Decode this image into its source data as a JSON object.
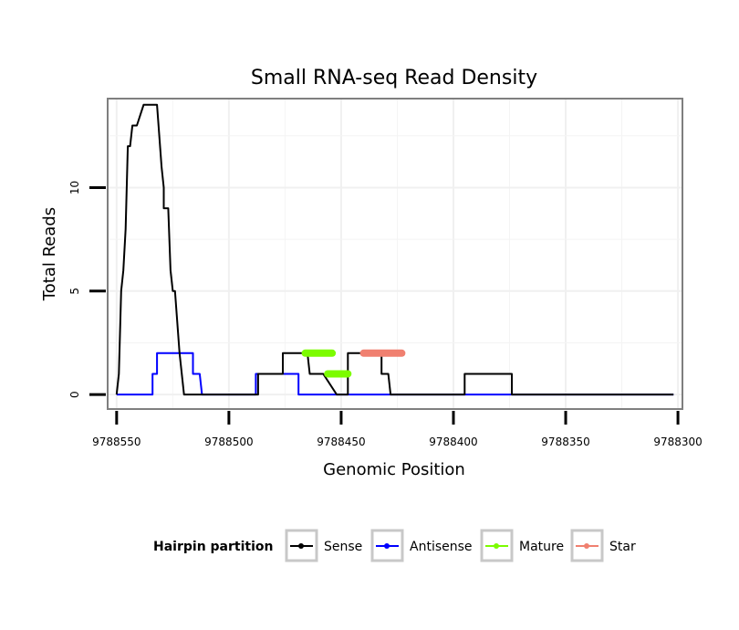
{
  "chart_data": {
    "type": "line",
    "title": "Small RNA-seq Read Density",
    "xlabel": "Genomic Position",
    "ylabel": "Total Reads",
    "xlim": [
      9788554,
      9788298
    ],
    "x_reversed": true,
    "ylim": [
      -0.7,
      14.3
    ],
    "x_ticks": [
      9788550,
      9788500,
      9788450,
      9788400,
      9788350,
      9788300
    ],
    "x_tick_labels": [
      "9788550",
      "9788500",
      "9788450",
      "9788400",
      "9788350",
      "9788300"
    ],
    "y_ticks": [
      0,
      5,
      10
    ],
    "y_tick_labels": [
      "0",
      "5",
      "10"
    ],
    "grid": true,
    "legend": {
      "title": "Hairpin partition",
      "position": "bottom",
      "entries": [
        "Sense",
        "Antisense",
        "Mature",
        "Star"
      ]
    },
    "series": [
      {
        "name": "Sense",
        "color": "#000000",
        "x": [
          9788550,
          9788549,
          9788548,
          9788547,
          9788546,
          9788546,
          9788545,
          9788545,
          9788544,
          9788543,
          9788543,
          9788541,
          9788541,
          9788538,
          9788538,
          9788532,
          9788532,
          9788530,
          9788529,
          9788529,
          9788527,
          9788526,
          9788526,
          9788525,
          9788524,
          9788524,
          9788522,
          9788520,
          9788487,
          9788487,
          9788478,
          9788476,
          9788476,
          9788465,
          9788464,
          9788464,
          9788458,
          9788458,
          9788452,
          9788452,
          9788447,
          9788447,
          9788432,
          9788432,
          9788429,
          9788428,
          9788428,
          9788395,
          9788395,
          9788374,
          9788374,
          9788302
        ],
        "values": [
          0,
          1,
          5,
          6,
          8,
          8,
          12,
          12,
          12,
          13,
          13,
          13,
          13,
          14,
          14,
          14,
          14,
          11,
          10,
          9,
          9,
          6,
          6,
          5,
          5,
          5,
          2,
          0,
          0,
          1,
          1,
          1,
          2,
          2,
          1,
          1,
          1,
          1,
          0,
          0,
          0,
          2,
          2,
          1,
          1,
          0,
          0,
          0,
          1,
          1,
          0,
          0
        ]
      },
      {
        "name": "Antisense",
        "color": "#0000ff",
        "x": [
          9788550,
          9788534,
          9788534,
          9788532,
          9788532,
          9788516,
          9788516,
          9788514,
          9788513,
          9788512,
          9788488,
          9788488,
          9788469,
          9788469,
          9788302
        ],
        "values": [
          0,
          0,
          1,
          1,
          2,
          2,
          1,
          1,
          1,
          0,
          0,
          1,
          1,
          0,
          0
        ]
      },
      {
        "name": "Mature",
        "color": "#7cfc00",
        "x": [
          9788466,
          9788454,
          9788456,
          9788447
        ],
        "values": [
          2,
          2,
          1,
          1
        ],
        "segments": [
          [
            9788466,
            9788454,
            2
          ],
          [
            9788456,
            9788447,
            1
          ]
        ]
      },
      {
        "name": "Star",
        "color": "#f08070",
        "x": [
          9788440,
          9788423
        ],
        "values": [
          2,
          2
        ],
        "segments": [
          [
            9788440,
            9788423,
            2
          ]
        ]
      }
    ]
  }
}
